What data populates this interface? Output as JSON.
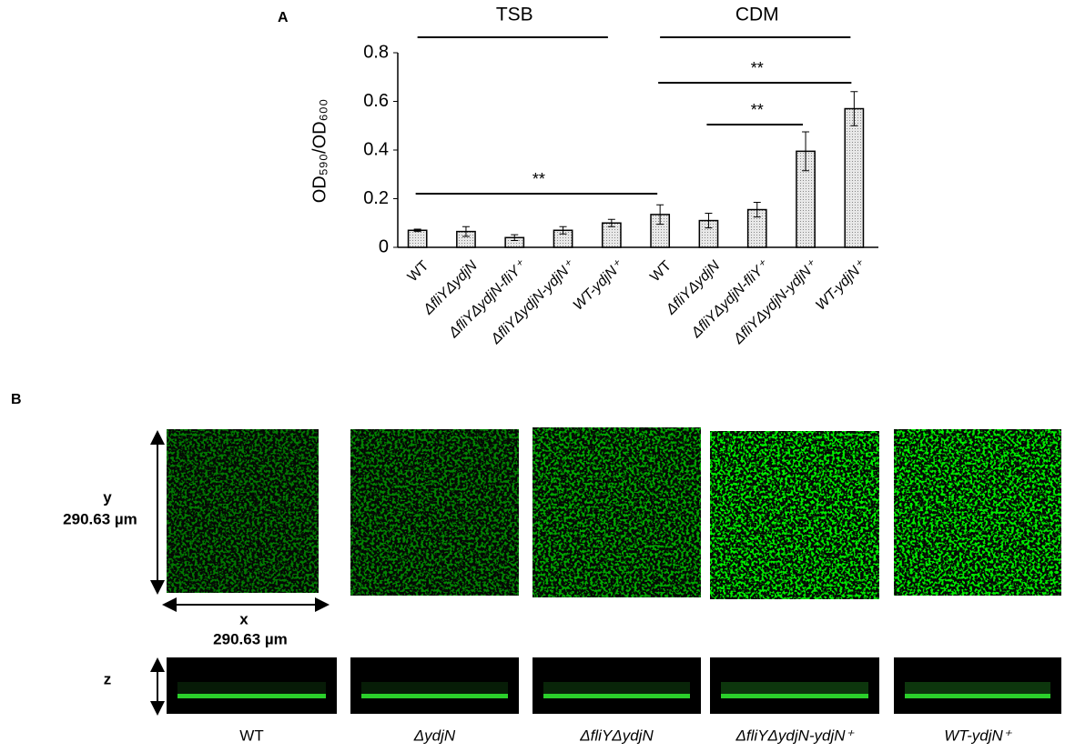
{
  "chart_data": {
    "type": "bar",
    "panel_label": "A",
    "y_label": "OD₅₉₀/OD₆₀₀",
    "categories": [
      "WT",
      "ΔfliYΔydjN",
      "ΔfliYΔydjN-fliY⁺",
      "ΔfliYΔydjN-ydjN⁺",
      "WT-ydjN⁺",
      "WT",
      "ΔfliYΔydjN",
      "ΔfliYΔydjN-fliY⁺",
      "ΔfliYΔydjN-ydjN⁺",
      "WT-ydjN⁺"
    ],
    "values": [
      0.07,
      0.065,
      0.04,
      0.07,
      0.1,
      0.135,
      0.11,
      0.155,
      0.395,
      0.57
    ],
    "errors": [
      0.005,
      0.02,
      0.012,
      0.015,
      0.015,
      0.04,
      0.03,
      0.03,
      0.08,
      0.07
    ],
    "color": "#d9d9d9",
    "ylim": [
      0,
      0.8
    ],
    "yticks": [
      0,
      0.2,
      0.4,
      0.6,
      0.8
    ],
    "groups": [
      "TSB",
      "CDM"
    ],
    "significance": [
      "**",
      "**",
      "**"
    ]
  },
  "panel_b": {
    "panel_label": "B",
    "y_axis_label": "y",
    "y_size": "290.63 µm",
    "x_axis_label": "x",
    "x_size": "290.63 µm",
    "z_axis_label": "z",
    "strains": [
      "WT",
      "ΔydjN",
      "ΔfliYΔydjN",
      "ΔfliYΔydjN-ydjN⁺",
      "WT-ydjN⁺"
    ]
  }
}
